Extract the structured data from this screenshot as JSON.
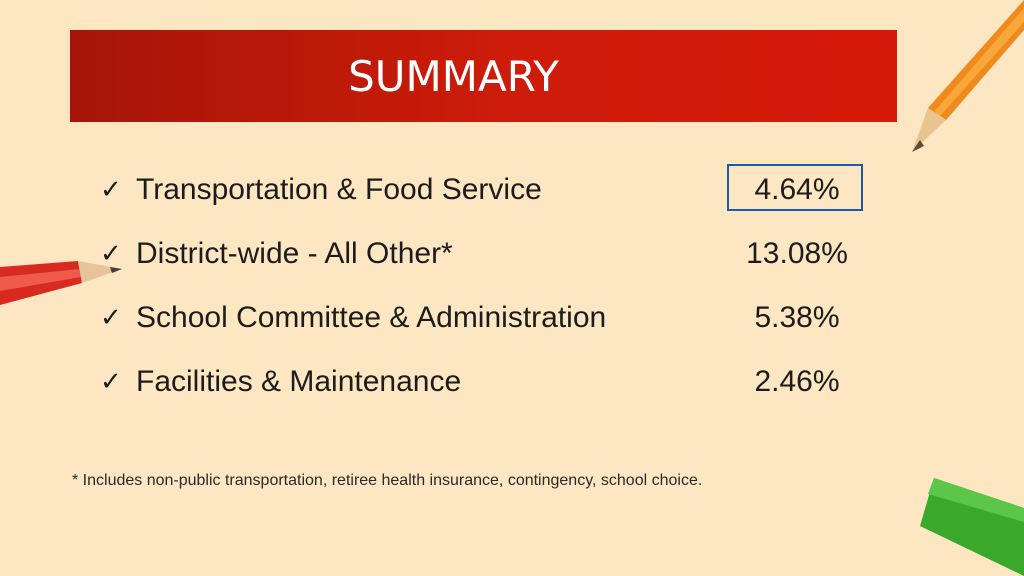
{
  "header": {
    "title": "SUMMARY"
  },
  "items": [
    {
      "label": "Transportation & Food Service",
      "value": "4.64%"
    },
    {
      "label": "District-wide - All Other*",
      "value": "13.08%"
    },
    {
      "label": "School Committee & Administration",
      "value": "5.38%"
    },
    {
      "label": "Facilities & Maintenance",
      "value": "2.46%"
    }
  ],
  "check_symbol": "✓",
  "footnote": "* Includes non-public transportation, retiree health insurance, contingency, school choice.",
  "colors": {
    "background": "#fde6c2",
    "banner": "#cf1c0a",
    "highlight_border": "#1b5aa8"
  }
}
